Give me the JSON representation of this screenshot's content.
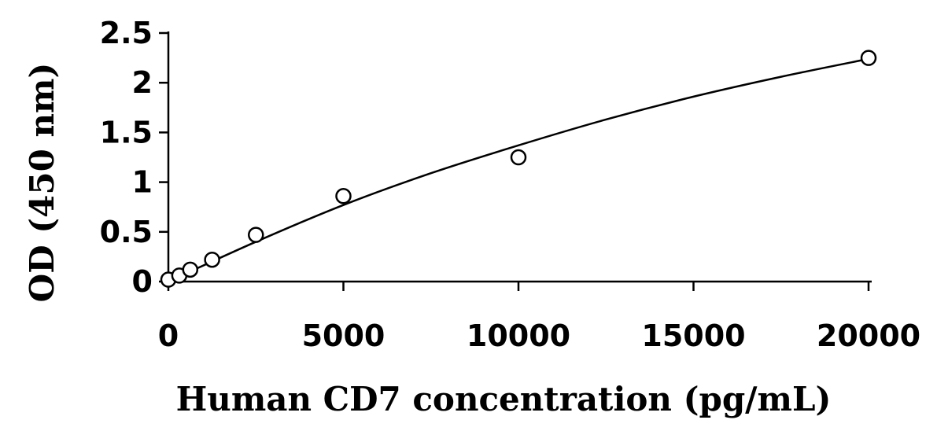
{
  "chart_data": {
    "type": "scatter",
    "title": "",
    "xlabel": "Human CD7 concentration (pg/mL)",
    "ylabel": "OD (450 nm)",
    "xlim": [
      0,
      20000
    ],
    "ylim": [
      0,
      2.5
    ],
    "x_ticks": [
      0,
      5000,
      10000,
      15000,
      20000
    ],
    "y_ticks": [
      0,
      0.5,
      1,
      1.5,
      2,
      2.5
    ],
    "x_tick_labels": [
      "0",
      "5000",
      "10000",
      "15000",
      "20000"
    ],
    "y_tick_labels": [
      "0",
      "0.5",
      "1",
      "1.5",
      "2",
      "2.5"
    ],
    "grid": false,
    "legend": "none",
    "series": [
      {
        "marker": "open-circle",
        "x": [
          0,
          312.5,
          625,
          1250,
          2500,
          5000,
          10000,
          20000
        ],
        "y": [
          0.02,
          0.06,
          0.12,
          0.22,
          0.47,
          0.86,
          1.25,
          2.25
        ]
      }
    ],
    "fit_curve": {
      "type": "smooth",
      "x": [
        0,
        2500,
        5000,
        7500,
        10000,
        12500,
        15000,
        17500,
        20000
      ],
      "y": [
        0.0,
        0.4,
        0.77,
        1.09,
        1.37,
        1.63,
        1.86,
        2.06,
        2.24
      ]
    }
  }
}
